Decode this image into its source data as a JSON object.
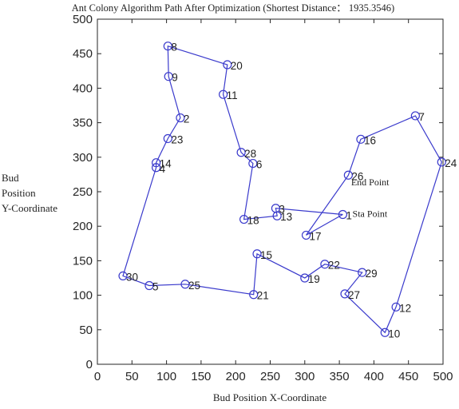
{
  "chart_data": {
    "type": "line",
    "title": "Ant Colony Algorithm Path After Optimization (Shortest Distance：  1935.3546)",
    "xlabel": "Bud Position X-Coordinate",
    "ylabel": [
      "Bud",
      "Position",
      "Y-Coordinate"
    ],
    "xlim": [
      0,
      500
    ],
    "ylim": [
      0,
      500
    ],
    "xticks": [
      0,
      50,
      100,
      150,
      200,
      250,
      300,
      350,
      400,
      450,
      500
    ],
    "yticks": [
      0,
      50,
      100,
      150,
      200,
      250,
      300,
      350,
      400,
      450,
      500
    ],
    "grid": false,
    "series_color": "#3a3acc",
    "points": [
      {
        "id": "1",
        "x": 355,
        "y": 217
      },
      {
        "id": "2",
        "x": 120,
        "y": 357
      },
      {
        "id": "3",
        "x": 258,
        "y": 226
      },
      {
        "id": "4",
        "x": 85,
        "y": 285
      },
      {
        "id": "5",
        "x": 75,
        "y": 114
      },
      {
        "id": "6",
        "x": 225,
        "y": 291
      },
      {
        "id": "7",
        "x": 460,
        "y": 360
      },
      {
        "id": "8",
        "x": 102,
        "y": 461
      },
      {
        "id": "9",
        "x": 103,
        "y": 417
      },
      {
        "id": "10",
        "x": 416,
        "y": 46
      },
      {
        "id": "11",
        "x": 182,
        "y": 391
      },
      {
        "id": "12",
        "x": 432,
        "y": 83
      },
      {
        "id": "13",
        "x": 260,
        "y": 215
      },
      {
        "id": "14",
        "x": 85,
        "y": 292
      },
      {
        "id": "15",
        "x": 231,
        "y": 160
      },
      {
        "id": "16",
        "x": 381,
        "y": 326
      },
      {
        "id": "17",
        "x": 302,
        "y": 187
      },
      {
        "id": "18",
        "x": 212,
        "y": 210
      },
      {
        "id": "19",
        "x": 300,
        "y": 125
      },
      {
        "id": "20",
        "x": 188,
        "y": 434
      },
      {
        "id": "21",
        "x": 226,
        "y": 101
      },
      {
        "id": "22",
        "x": 329,
        "y": 145
      },
      {
        "id": "23",
        "x": 102,
        "y": 327
      },
      {
        "id": "24",
        "x": 498,
        "y": 293
      },
      {
        "id": "25",
        "x": 127,
        "y": 116
      },
      {
        "id": "26",
        "x": 363,
        "y": 274
      },
      {
        "id": "27",
        "x": 358,
        "y": 102
      },
      {
        "id": "28",
        "x": 208,
        "y": 307
      },
      {
        "id": "29",
        "x": 383,
        "y": 133
      },
      {
        "id": "30",
        "x": 37,
        "y": 128
      }
    ],
    "path": [
      "1",
      "3",
      "13",
      "18",
      "6",
      "28",
      "11",
      "20",
      "8",
      "9",
      "2",
      "23",
      "14",
      "4",
      "30",
      "5",
      "25",
      "21",
      "15",
      "19",
      "22",
      "29",
      "27",
      "10",
      "12",
      "24",
      "7",
      "16",
      "26",
      "17",
      "1"
    ],
    "annotations": [
      {
        "text": "End Point",
        "x": 367,
        "y": 264
      },
      {
        "text": "Sta Point",
        "x": 369,
        "y": 218
      }
    ]
  }
}
